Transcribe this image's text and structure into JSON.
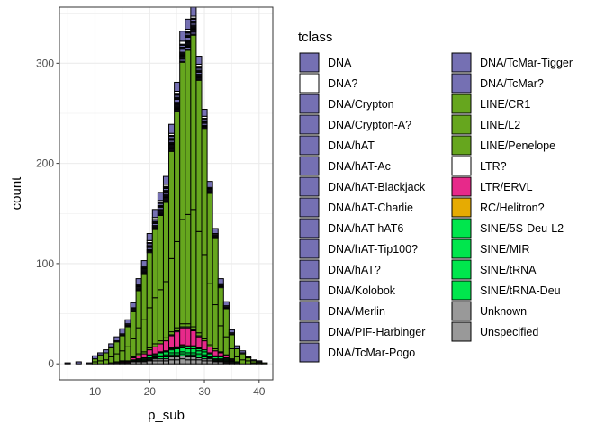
{
  "chart_data": {
    "type": "bar",
    "stacked": true,
    "xlabel": "p_sub",
    "ylabel": "count",
    "xlim": [
      3.5,
      42.5
    ],
    "ylim": [
      -16,
      356
    ],
    "x_ticks": [
      10,
      20,
      30,
      40
    ],
    "y_ticks": [
      0,
      100,
      200,
      300
    ],
    "grid": true,
    "legend_title": "tclass",
    "legend_position": "right",
    "bin_width": 1,
    "bin_centers": [
      5,
      6,
      7,
      8,
      9,
      10,
      11,
      12,
      13,
      14,
      15,
      16,
      17,
      18,
      19,
      20,
      21,
      22,
      23,
      24,
      25,
      26,
      27,
      28,
      29,
      30,
      31,
      32,
      33,
      34,
      35,
      36,
      37,
      38,
      39,
      40,
      41
    ],
    "series": [
      {
        "name": "DNA",
        "color": "#7570b3",
        "values": [
          1,
          0,
          2,
          0,
          1,
          3,
          2,
          3,
          3,
          4,
          5,
          4,
          5,
          6,
          6,
          7,
          8,
          8,
          8,
          9,
          9,
          10,
          10,
          9,
          8,
          7,
          6,
          5,
          5,
          4,
          3,
          3,
          2,
          1,
          1,
          1,
          0
        ]
      },
      {
        "name": "DNA?",
        "color": "#ffffff",
        "values": [
          0,
          0,
          0,
          0,
          0,
          0,
          1,
          0,
          1,
          0,
          1,
          1,
          1,
          1,
          1,
          2,
          2,
          2,
          2,
          2,
          2,
          3,
          2,
          2,
          2,
          2,
          1,
          1,
          1,
          1,
          1,
          0,
          1,
          0,
          0,
          0,
          0
        ]
      },
      {
        "name": "DNA/Crypton",
        "color": "#7570b3",
        "values": [
          0,
          0,
          0,
          0,
          0,
          0,
          0,
          0,
          0,
          0,
          0,
          0,
          0,
          0,
          0,
          1,
          0,
          1,
          1,
          1,
          1,
          1,
          1,
          1,
          1,
          1,
          0,
          0,
          0,
          0,
          0,
          0,
          0,
          0,
          0,
          0,
          0
        ]
      },
      {
        "name": "DNA/Crypton-A?",
        "color": "#7570b3",
        "values": [
          0,
          0,
          0,
          0,
          0,
          0,
          0,
          0,
          0,
          0,
          0,
          0,
          0,
          0,
          0,
          0,
          0,
          0,
          1,
          0,
          1,
          0,
          1,
          0,
          1,
          0,
          0,
          0,
          0,
          0,
          0,
          0,
          0,
          0,
          0,
          0,
          0
        ]
      },
      {
        "name": "DNA/hAT",
        "color": "#7570b3",
        "values": [
          0,
          0,
          0,
          0,
          0,
          0,
          0,
          0,
          0,
          0,
          0,
          1,
          1,
          1,
          1,
          2,
          2,
          2,
          2,
          2,
          2,
          2,
          2,
          2,
          2,
          2,
          1,
          1,
          1,
          1,
          0,
          0,
          0,
          0,
          0,
          0,
          0
        ]
      },
      {
        "name": "DNA/hAT-Ac",
        "color": "#7570b3",
        "values": [
          0,
          0,
          0,
          0,
          0,
          0,
          0,
          0,
          0,
          0,
          0,
          0,
          0,
          1,
          1,
          1,
          1,
          1,
          1,
          1,
          1,
          1,
          1,
          1,
          1,
          1,
          1,
          0,
          0,
          0,
          0,
          0,
          0,
          0,
          0,
          0,
          0
        ]
      },
      {
        "name": "DNA/hAT-Blackjack",
        "color": "#7570b3",
        "values": [
          0,
          0,
          0,
          0,
          0,
          0,
          0,
          0,
          0,
          0,
          0,
          0,
          0,
          0,
          1,
          1,
          1,
          1,
          1,
          1,
          1,
          1,
          1,
          1,
          1,
          1,
          0,
          0,
          0,
          0,
          0,
          0,
          0,
          0,
          0,
          0,
          0
        ]
      },
      {
        "name": "DNA/hAT-Charlie",
        "color": "#7570b3",
        "values": [
          0,
          0,
          0,
          0,
          0,
          0,
          0,
          0,
          0,
          1,
          1,
          1,
          1,
          1,
          1,
          2,
          2,
          2,
          2,
          2,
          3,
          3,
          3,
          2,
          2,
          2,
          1,
          1,
          1,
          1,
          1,
          0,
          0,
          0,
          0,
          0,
          0
        ]
      },
      {
        "name": "DNA/hAT-hAT6",
        "color": "#7570b3",
        "values": [
          0,
          0,
          0,
          0,
          0,
          0,
          0,
          0,
          0,
          0,
          0,
          0,
          0,
          0,
          0,
          0,
          1,
          1,
          1,
          1,
          1,
          1,
          1,
          1,
          1,
          0,
          0,
          0,
          0,
          0,
          0,
          0,
          0,
          0,
          0,
          0,
          0
        ]
      },
      {
        "name": "DNA/hAT-Tip100?",
        "color": "#7570b3",
        "values": [
          0,
          0,
          0,
          0,
          0,
          0,
          0,
          0,
          0,
          0,
          0,
          0,
          0,
          0,
          0,
          0,
          0,
          1,
          1,
          1,
          1,
          1,
          1,
          1,
          0,
          0,
          0,
          0,
          0,
          0,
          0,
          0,
          0,
          0,
          0,
          0,
          0
        ]
      },
      {
        "name": "DNA/hAT?",
        "color": "#7570b3",
        "values": [
          0,
          0,
          0,
          0,
          0,
          0,
          0,
          0,
          0,
          0,
          0,
          0,
          0,
          0,
          0,
          1,
          1,
          1,
          1,
          1,
          1,
          1,
          1,
          1,
          1,
          1,
          0,
          0,
          0,
          0,
          0,
          0,
          0,
          0,
          0,
          0,
          0
        ]
      },
      {
        "name": "DNA/Kolobok",
        "color": "#7570b3",
        "values": [
          0,
          0,
          0,
          0,
          0,
          0,
          0,
          0,
          0,
          0,
          0,
          0,
          0,
          0,
          0,
          0,
          0,
          0,
          1,
          1,
          1,
          1,
          1,
          1,
          0,
          0,
          0,
          0,
          0,
          0,
          0,
          0,
          0,
          0,
          0,
          0,
          0
        ]
      },
      {
        "name": "DNA/Merlin",
        "color": "#7570b3",
        "values": [
          0,
          0,
          0,
          0,
          0,
          0,
          0,
          0,
          0,
          0,
          0,
          0,
          0,
          0,
          0,
          0,
          0,
          1,
          1,
          1,
          1,
          1,
          1,
          1,
          1,
          0,
          0,
          0,
          0,
          0,
          0,
          0,
          0,
          0,
          0,
          0,
          0
        ]
      },
      {
        "name": "DNA/PIF-Harbinger",
        "color": "#7570b3",
        "values": [
          0,
          0,
          0,
          0,
          0,
          0,
          0,
          0,
          0,
          0,
          0,
          0,
          1,
          1,
          1,
          1,
          1,
          1,
          1,
          1,
          1,
          1,
          1,
          1,
          1,
          1,
          1,
          1,
          0,
          0,
          0,
          0,
          0,
          0,
          0,
          0,
          0
        ]
      },
      {
        "name": "DNA/TcMar-Pogo",
        "color": "#7570b3",
        "values": [
          0,
          0,
          0,
          0,
          0,
          0,
          0,
          0,
          0,
          0,
          0,
          0,
          0,
          0,
          0,
          0,
          0,
          0,
          1,
          1,
          1,
          1,
          1,
          1,
          1,
          0,
          0,
          0,
          0,
          0,
          0,
          0,
          0,
          0,
          0,
          0,
          0
        ]
      },
      {
        "name": "DNA/TcMar-Tigger",
        "color": "#7570b3",
        "values": [
          0,
          0,
          0,
          0,
          0,
          0,
          0,
          0,
          0,
          0,
          0,
          0,
          0,
          1,
          1,
          1,
          1,
          1,
          1,
          1,
          1,
          2,
          2,
          2,
          1,
          1,
          1,
          1,
          1,
          0,
          0,
          0,
          0,
          0,
          0,
          0,
          0
        ]
      },
      {
        "name": "DNA/TcMar?",
        "color": "#7570b3",
        "values": [
          0,
          0,
          0,
          0,
          0,
          0,
          0,
          0,
          0,
          0,
          0,
          0,
          0,
          0,
          0,
          0,
          0,
          0,
          0,
          1,
          1,
          1,
          1,
          1,
          0,
          0,
          0,
          0,
          0,
          0,
          0,
          0,
          0,
          0,
          0,
          0,
          0
        ]
      },
      {
        "name": "LINE/CR1",
        "color": "#66a61e",
        "values": [
          0,
          0,
          0,
          0,
          0,
          3,
          5,
          7,
          9,
          12,
          15,
          20,
          27,
          37,
          46,
          55,
          68,
          74,
          79,
          107,
          130,
          157,
          164,
          174,
          151,
          126,
          90,
          66,
          38,
          28,
          14,
          8,
          6,
          3,
          2,
          1,
          1
        ]
      },
      {
        "name": "LINE/L2",
        "color": "#66a61e",
        "values": [
          0,
          0,
          0,
          0,
          0,
          2,
          3,
          4,
          6,
          8,
          10,
          14,
          18,
          26,
          32,
          40,
          46,
          51,
          56,
          73,
          86,
          104,
          109,
          117,
          101,
          84,
          61,
          44,
          26,
          18,
          10,
          5,
          4,
          3,
          1,
          1,
          0
        ]
      },
      {
        "name": "LINE/Penelope",
        "color": "#66a61e",
        "values": [
          0,
          0,
          0,
          0,
          0,
          0,
          0,
          0,
          0,
          1,
          1,
          1,
          1,
          2,
          2,
          2,
          3,
          3,
          3,
          3,
          3,
          3,
          3,
          3,
          3,
          2,
          2,
          2,
          1,
          1,
          1,
          0,
          0,
          0,
          0,
          0,
          0
        ]
      },
      {
        "name": "LTR?",
        "color": "#ffffff",
        "values": [
          0,
          0,
          0,
          0,
          0,
          0,
          0,
          0,
          0,
          0,
          0,
          0,
          0,
          0,
          0,
          0,
          0,
          0,
          0,
          1,
          1,
          1,
          1,
          1,
          1,
          0,
          0,
          0,
          0,
          0,
          0,
          0,
          0,
          0,
          0,
          0,
          0
        ]
      },
      {
        "name": "LTR/ERVL",
        "color": "#e7298a",
        "values": [
          0,
          0,
          0,
          0,
          0,
          0,
          0,
          0,
          0,
          0,
          1,
          1,
          2,
          3,
          4,
          5,
          7,
          8,
          10,
          12,
          15,
          17,
          18,
          15,
          11,
          9,
          6,
          5,
          3,
          2,
          1,
          0,
          0,
          0,
          0,
          0,
          0
        ]
      },
      {
        "name": "RC/Helitron?",
        "color": "#e6ab02",
        "values": [
          0,
          0,
          0,
          0,
          0,
          0,
          0,
          0,
          0,
          0,
          0,
          0,
          0,
          0,
          0,
          0,
          0,
          0,
          0,
          1,
          1,
          1,
          1,
          1,
          1,
          0,
          0,
          0,
          0,
          0,
          0,
          0,
          0,
          0,
          0,
          0,
          0
        ]
      },
      {
        "name": "SINE/5S-Deu-L2",
        "color": "#00e64d",
        "values": [
          0,
          0,
          0,
          0,
          0,
          0,
          0,
          0,
          0,
          0,
          0,
          0,
          0,
          0,
          0,
          1,
          1,
          1,
          1,
          1,
          1,
          2,
          2,
          2,
          2,
          2,
          1,
          1,
          1,
          1,
          0,
          0,
          0,
          0,
          0,
          0,
          0
        ]
      },
      {
        "name": "SINE/MIR",
        "color": "#00e64d",
        "values": [
          0,
          0,
          0,
          0,
          0,
          0,
          0,
          0,
          0,
          0,
          0,
          0,
          1,
          1,
          1,
          2,
          2,
          3,
          3,
          3,
          4,
          4,
          4,
          4,
          3,
          3,
          3,
          2,
          2,
          1,
          1,
          1,
          0,
          0,
          0,
          0,
          0
        ]
      },
      {
        "name": "SINE/tRNA",
        "color": "#00e64d",
        "values": [
          0,
          0,
          0,
          0,
          0,
          0,
          0,
          0,
          0,
          0,
          0,
          0,
          0,
          0,
          1,
          1,
          1,
          1,
          2,
          2,
          2,
          2,
          2,
          2,
          2,
          2,
          1,
          1,
          1,
          1,
          0,
          0,
          0,
          0,
          0,
          0,
          0
        ]
      },
      {
        "name": "SINE/tRNA-Deu",
        "color": "#00e64d",
        "values": [
          0,
          0,
          0,
          0,
          0,
          0,
          0,
          0,
          0,
          0,
          0,
          0,
          0,
          1,
          1,
          1,
          1,
          2,
          2,
          2,
          2,
          2,
          2,
          2,
          2,
          2,
          1,
          1,
          1,
          1,
          0,
          0,
          0,
          0,
          0,
          0,
          0
        ]
      },
      {
        "name": "Unknown",
        "color": "#999999",
        "values": [
          0,
          0,
          0,
          0,
          0,
          0,
          0,
          0,
          0,
          0,
          0,
          0,
          1,
          1,
          1,
          1,
          2,
          2,
          2,
          3,
          3,
          3,
          3,
          3,
          2,
          2,
          2,
          1,
          1,
          1,
          1,
          0,
          0,
          0,
          0,
          0,
          0
        ]
      },
      {
        "name": "Unspecified",
        "color": "#999999",
        "values": [
          0,
          0,
          0,
          0,
          0,
          0,
          0,
          0,
          1,
          1,
          1,
          1,
          2,
          2,
          2,
          3,
          3,
          3,
          3,
          4,
          4,
          5,
          4,
          4,
          4,
          3,
          3,
          2,
          2,
          1,
          1,
          1,
          0,
          0,
          0,
          0,
          0
        ]
      }
    ]
  }
}
